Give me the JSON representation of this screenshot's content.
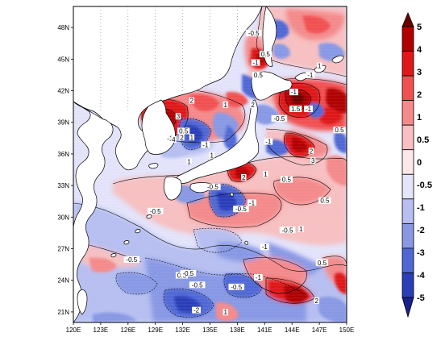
{
  "map": {
    "lon_ticks": [
      "120E",
      "123E",
      "126E",
      "129E",
      "132E",
      "135E",
      "138E",
      "141E",
      "144E",
      "147E",
      "150E"
    ],
    "lat_ticks": [
      "48N",
      "45N",
      "42N",
      "39N",
      "36N",
      "33N",
      "30N",
      "27N",
      "24N",
      "21N"
    ],
    "extent": {
      "lon": [
        120,
        150
      ],
      "lat": [
        20,
        50
      ]
    }
  },
  "colorbar": {
    "labels": [
      "5",
      "4",
      "3",
      "2",
      "1",
      "0.5",
      "0",
      "-0.5",
      "-1",
      "-2",
      "-3",
      "-4",
      "-5"
    ],
    "colors": [
      "#6b0000",
      "#b00000",
      "#e01818",
      "#f25050",
      "#f58a8a",
      "#f8c0c0",
      "#fce8e8",
      "#e4e4fa",
      "#b6bff0",
      "#8898e4",
      "#5068d4",
      "#2a3eb8",
      "#1a2090"
    ]
  },
  "contour_labels": [
    {
      "text": "-0.5",
      "lon": 139.8,
      "lat": 47.4
    },
    {
      "text": "0.5",
      "lon": 141.1,
      "lat": 45.4
    },
    {
      "text": "-1",
      "lon": 140.0,
      "lat": 44.6
    },
    {
      "text": "0.5",
      "lon": 140.3,
      "lat": 43.4
    },
    {
      "text": "1",
      "lon": 147.0,
      "lat": 44.3
    },
    {
      "text": "-1",
      "lon": 146.0,
      "lat": 43.4
    },
    {
      "text": "-1",
      "lon": 144.2,
      "lat": 41.8
    },
    {
      "text": "2",
      "lon": 133.0,
      "lat": 41.0
    },
    {
      "text": "1",
      "lon": 136.7,
      "lat": 40.6
    },
    {
      "text": "2",
      "lon": 139.7,
      "lat": 40.6
    },
    {
      "text": "1.5",
      "lon": 144.4,
      "lat": 40.2
    },
    {
      "text": "-1",
      "lon": 145.8,
      "lat": 40.2
    },
    {
      "text": "-0.5",
      "lon": 142.6,
      "lat": 39.3
    },
    {
      "text": "3",
      "lon": 131.5,
      "lat": 39.5
    },
    {
      "text": "0.5",
      "lon": 132.1,
      "lat": 38.1
    },
    {
      "text": "-1",
      "lon": 130.6,
      "lat": 37.4
    },
    {
      "text": "2",
      "lon": 131.9,
      "lat": 37.5
    },
    {
      "text": "1",
      "lon": 133.0,
      "lat": 37.5
    },
    {
      "text": "-1",
      "lon": 134.5,
      "lat": 36.8
    },
    {
      "text": "0.5",
      "lon": 149.2,
      "lat": 38.2
    },
    {
      "text": "4",
      "lon": 131.0,
      "lat": 37.3
    },
    {
      "text": "1",
      "lon": 135.2,
      "lat": 35.8
    },
    {
      "text": "-1",
      "lon": 141.4,
      "lat": 37.1
    },
    {
      "text": "2",
      "lon": 146.1,
      "lat": 36.2
    },
    {
      "text": "1",
      "lon": 132.7,
      "lat": 35.2
    },
    {
      "text": "3",
      "lon": 146.3,
      "lat": 35.3
    },
    {
      "text": "2",
      "lon": 138.7,
      "lat": 33.7
    },
    {
      "text": "1",
      "lon": 141.1,
      "lat": 34.0
    },
    {
      "text": "0.5",
      "lon": 143.4,
      "lat": 33.5
    },
    {
      "text": "-0.5",
      "lon": 135.3,
      "lat": 32.8
    },
    {
      "text": "-1",
      "lon": 139.6,
      "lat": 31.3
    },
    {
      "text": "-0.5",
      "lon": 138.4,
      "lat": 30.7
    },
    {
      "text": "0.5",
      "lon": 147.6,
      "lat": 31.5
    },
    {
      "text": "-0.5",
      "lon": 129.0,
      "lat": 30.5
    },
    {
      "text": "-0.5",
      "lon": 143.5,
      "lat": 28.7
    },
    {
      "text": "1",
      "lon": 145.0,
      "lat": 28.8
    },
    {
      "text": "-1",
      "lon": 141.0,
      "lat": 27.1
    },
    {
      "text": "-0.5",
      "lon": 126.4,
      "lat": 25.9
    },
    {
      "text": "0.5",
      "lon": 131.9,
      "lat": 24.4
    },
    {
      "text": "-0.5",
      "lon": 132.6,
      "lat": 24.6
    },
    {
      "text": "-0.5",
      "lon": 133.6,
      "lat": 23.5
    },
    {
      "text": "-0.5",
      "lon": 137.9,
      "lat": 23.3
    },
    {
      "text": "-1",
      "lon": 140.3,
      "lat": 24.2
    },
    {
      "text": "0.5",
      "lon": 147.3,
      "lat": 25.6
    },
    {
      "text": "2",
      "lon": 146.7,
      "lat": 22.0
    },
    {
      "text": "-2",
      "lon": 133.5,
      "lat": 21.1
    },
    {
      "text": "1",
      "lon": 136.7,
      "lat": 20.9
    }
  ]
}
